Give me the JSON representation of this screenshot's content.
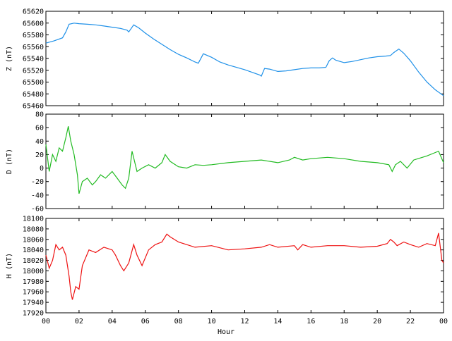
{
  "x_axis": {
    "label": "Hour",
    "range": [
      0,
      24
    ],
    "tick_labels": [
      "00",
      "02",
      "04",
      "06",
      "08",
      "10",
      "12",
      "14",
      "16",
      "18",
      "20",
      "22",
      "00"
    ]
  },
  "chart_data": [
    {
      "type": "line",
      "ylabel": "Z (nT)",
      "ylim": [
        65460,
        65620
      ],
      "yticks": [
        65460,
        65480,
        65500,
        65520,
        65540,
        65560,
        65580,
        65600,
        65620
      ],
      "color": "#1e90e8",
      "x": [
        0.0,
        0.5,
        1.0,
        1.2,
        1.4,
        1.7,
        2.0,
        2.5,
        3.0,
        3.5,
        4.0,
        4.5,
        4.9,
        5.0,
        5.3,
        5.6,
        6.0,
        6.5,
        7.0,
        7.5,
        8.0,
        8.5,
        9.0,
        9.2,
        9.5,
        10.0,
        10.5,
        11.0,
        11.5,
        12.0,
        12.5,
        12.9,
        13.0,
        13.2,
        13.5,
        14.0,
        14.5,
        15.0,
        15.5,
        16.0,
        16.5,
        16.9,
        17.1,
        17.3,
        17.5,
        18.0,
        18.5,
        19.0,
        19.5,
        20.0,
        20.5,
        20.8,
        21.0,
        21.3,
        21.6,
        22.0,
        22.5,
        23.0,
        23.5,
        24.0
      ],
      "y": [
        65566,
        65570,
        65575,
        65585,
        65598,
        65600,
        65599,
        65598,
        65597,
        65595,
        65593,
        65591,
        65588,
        65585,
        65597,
        65592,
        65583,
        65573,
        65564,
        65555,
        65547,
        65541,
        65534,
        65532,
        65548,
        65542,
        65534,
        65529,
        65525,
        65521,
        65516,
        65512,
        65510,
        65523,
        65522,
        65518,
        65519,
        65521,
        65523,
        65524,
        65524,
        65525,
        65536,
        65541,
        65537,
        65533,
        65535,
        65538,
        65541,
        65543,
        65544,
        65545,
        65550,
        65556,
        65549,
        65536,
        65517,
        65500,
        65487,
        65477
      ]
    },
    {
      "type": "line",
      "ylabel": "D (nT)",
      "ylim": [
        -60,
        80
      ],
      "yticks": [
        -60,
        -40,
        -20,
        0,
        20,
        40,
        60,
        80
      ],
      "color": "#22bb22",
      "x": [
        0.0,
        0.2,
        0.4,
        0.6,
        0.8,
        1.0,
        1.2,
        1.35,
        1.5,
        1.7,
        1.9,
        2.0,
        2.2,
        2.5,
        2.8,
        3.0,
        3.3,
        3.6,
        4.0,
        4.3,
        4.6,
        4.8,
        5.0,
        5.2,
        5.5,
        5.8,
        6.2,
        6.6,
        7.0,
        7.2,
        7.5,
        8.0,
        8.5,
        9.0,
        9.5,
        10.0,
        11.0,
        12.0,
        13.0,
        14.0,
        14.7,
        15.0,
        15.5,
        16.0,
        17.0,
        18.0,
        19.0,
        20.0,
        20.7,
        20.9,
        21.1,
        21.4,
        21.8,
        22.2,
        22.6,
        23.0,
        23.4,
        23.7,
        24.0
      ],
      "y": [
        35,
        -5,
        20,
        10,
        30,
        25,
        45,
        62,
        40,
        20,
        -10,
        -38,
        -20,
        -15,
        -25,
        -20,
        -10,
        -15,
        -5,
        -15,
        -25,
        -30,
        -15,
        25,
        -5,
        0,
        5,
        0,
        8,
        20,
        10,
        2,
        0,
        5,
        4,
        5,
        8,
        10,
        12,
        8,
        12,
        16,
        12,
        14,
        16,
        14,
        10,
        8,
        5,
        -5,
        5,
        10,
        0,
        12,
        15,
        18,
        22,
        25,
        8
      ]
    }
  ],
  "h_panel": {
    "type": "line",
    "ylabel": "H (nT)",
    "ylim": [
      17920,
      18100
    ],
    "yticks": [
      17920,
      17940,
      17960,
      17980,
      18000,
      18020,
      18040,
      18060,
      18080,
      18100
    ],
    "color": "#ee1111",
    "x": [
      0.0,
      0.2,
      0.4,
      0.6,
      0.8,
      1.0,
      1.2,
      1.3,
      1.4,
      1.5,
      1.6,
      1.8,
      2.0,
      2.2,
      2.6,
      3.0,
      3.5,
      4.0,
      4.2,
      4.5,
      4.7,
      5.0,
      5.3,
      5.5,
      5.8,
      6.2,
      6.6,
      7.0,
      7.3,
      7.5,
      8.0,
      9.0,
      10.0,
      11.0,
      12.0,
      13.0,
      13.5,
      14.0,
      15.0,
      15.2,
      15.5,
      16.0,
      17.0,
      18.0,
      19.0,
      20.0,
      20.6,
      20.8,
      21.0,
      21.2,
      21.6,
      22.0,
      22.5,
      23.0,
      23.5,
      23.7,
      23.9,
      24.0
    ],
    "y": [
      18030,
      18005,
      18020,
      18050,
      18040,
      18045,
      18030,
      18010,
      17990,
      17960,
      17945,
      17970,
      17965,
      18010,
      18040,
      18035,
      18045,
      18040,
      18030,
      18010,
      18000,
      18015,
      18050,
      18030,
      18010,
      18040,
      18050,
      18055,
      18070,
      18065,
      18055,
      18045,
      18048,
      18040,
      18042,
      18045,
      18050,
      18045,
      18048,
      18040,
      18050,
      18045,
      18048,
      18048,
      18045,
      18047,
      18052,
      18060,
      18055,
      18048,
      18055,
      18050,
      18045,
      18052,
      18048,
      18072,
      18020,
      18015
    ]
  }
}
